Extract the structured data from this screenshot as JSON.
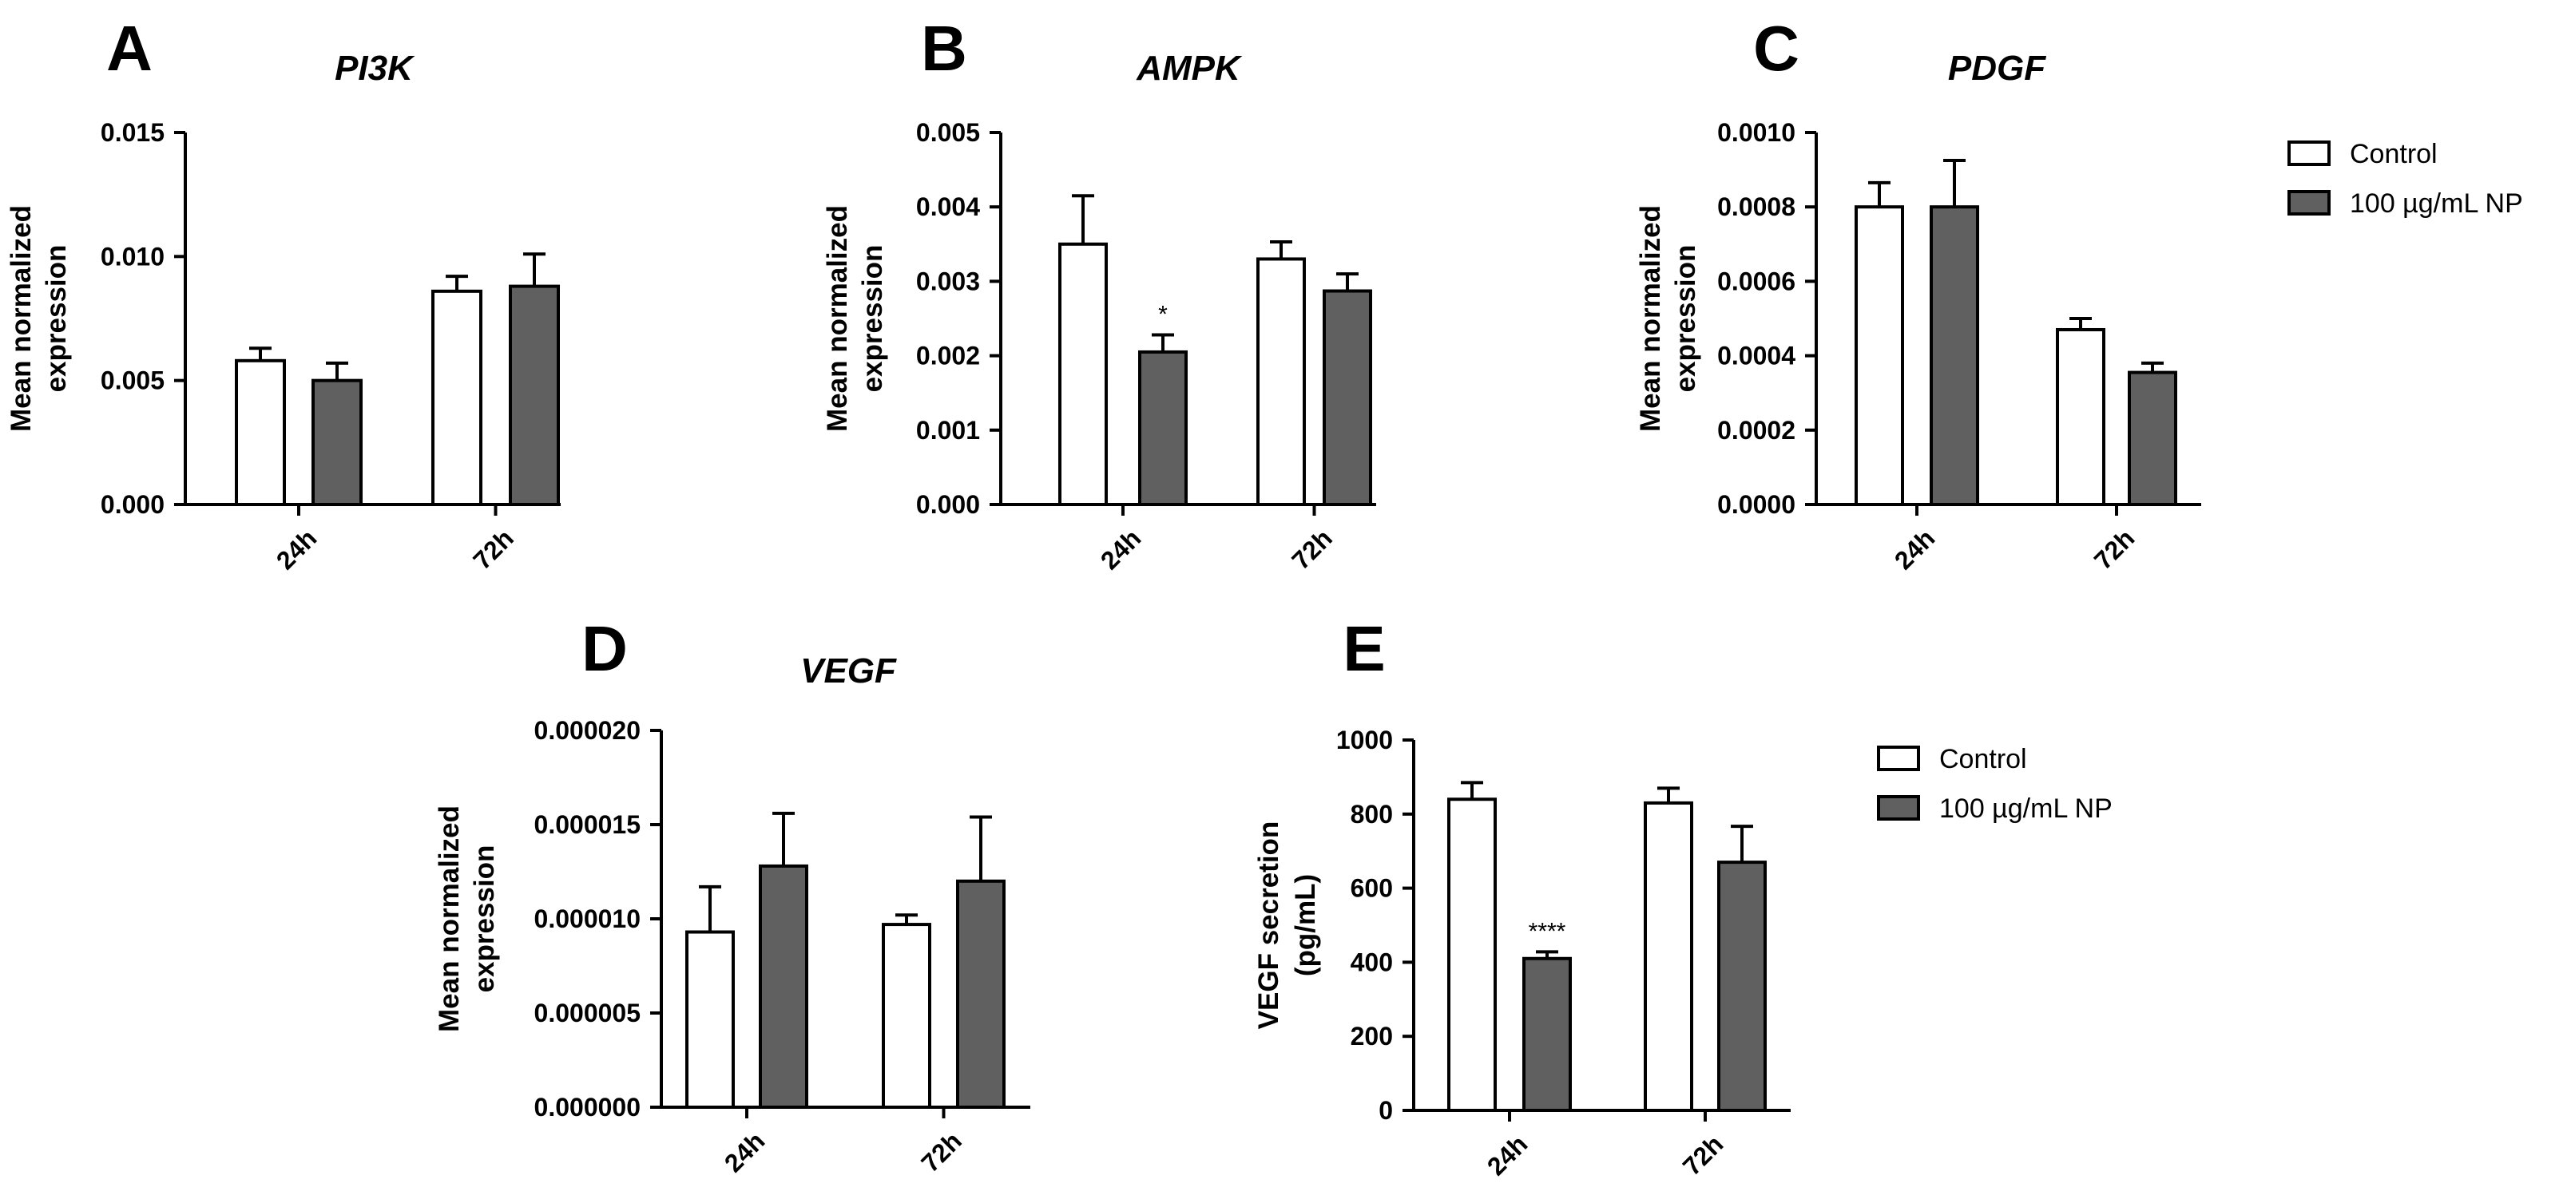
{
  "colors": {
    "control": "#ffffff",
    "treated": "#606060",
    "stroke": "#000000"
  },
  "legends": [
    {
      "items": [
        {
          "label": "Control",
          "series": "control"
        },
        {
          "label": "100 µg/mL NP",
          "series": "treated"
        }
      ]
    },
    {
      "items": [
        {
          "label": "Control",
          "series": "control"
        },
        {
          "label": "100 µg/mL NP",
          "series": "treated"
        }
      ]
    }
  ],
  "chart_data": [
    {
      "panel": "A",
      "type": "bar",
      "title": "PI3K",
      "ylabel_lines": [
        "Mean normalized",
        "expression"
      ],
      "categories": [
        "24h",
        "72h"
      ],
      "ylim": [
        0,
        0.015
      ],
      "yticks": [
        "0.000",
        "0.005",
        "0.010",
        "0.015"
      ],
      "series": [
        {
          "name": "Control",
          "key": "control",
          "values": [
            0.0058,
            0.0086
          ],
          "errors": [
            0.0005,
            0.0006
          ]
        },
        {
          "name": "100 µg/mL NP",
          "key": "treated",
          "values": [
            0.005,
            0.0088
          ],
          "errors": [
            0.0007,
            0.0013
          ]
        }
      ],
      "annotations": []
    },
    {
      "panel": "B",
      "type": "bar",
      "title": "AMPK",
      "ylabel_lines": [
        "Mean normalized",
        "expression"
      ],
      "categories": [
        "24h",
        "72h"
      ],
      "ylim": [
        0,
        0.005
      ],
      "yticks": [
        "0.000",
        "0.001",
        "0.002",
        "0.003",
        "0.004",
        "0.005"
      ],
      "series": [
        {
          "name": "Control",
          "key": "control",
          "values": [
            0.0035,
            0.0033
          ],
          "errors": [
            0.00065,
            0.00023
          ]
        },
        {
          "name": "100 µg/mL NP",
          "key": "treated",
          "values": [
            0.00205,
            0.00287
          ],
          "errors": [
            0.00023,
            0.00023
          ]
        }
      ],
      "annotations": [
        {
          "series": "treated",
          "category": "24h",
          "text": "*"
        }
      ]
    },
    {
      "panel": "C",
      "type": "bar",
      "title": "PDGF",
      "ylabel_lines": [
        "Mean normalized",
        "expression"
      ],
      "categories": [
        "24h",
        "72h"
      ],
      "ylim": [
        0,
        0.001
      ],
      "yticks": [
        "0.0000",
        "0.0002",
        "0.0004",
        "0.0006",
        "0.0008",
        "0.0010"
      ],
      "series": [
        {
          "name": "Control",
          "key": "control",
          "values": [
            0.0008,
            0.00047
          ],
          "errors": [
            6.5e-05,
            3e-05
          ]
        },
        {
          "name": "100 µg/mL NP",
          "key": "treated",
          "values": [
            0.0008,
            0.000355
          ],
          "errors": [
            0.000125,
            2.5e-05
          ]
        }
      ],
      "annotations": []
    },
    {
      "panel": "D",
      "type": "bar",
      "title": "VEGF",
      "ylabel_lines": [
        "Mean normalized",
        "expression"
      ],
      "categories": [
        "24h",
        "72h"
      ],
      "ylim": [
        0,
        2e-05
      ],
      "yticks": [
        "0.000000",
        "0.000005",
        "0.000010",
        "0.000015",
        "0.000020"
      ],
      "series": [
        {
          "name": "Control",
          "key": "control",
          "values": [
            9.3e-06,
            9.7e-06
          ],
          "errors": [
            2.4e-06,
            5e-07
          ]
        },
        {
          "name": "100 µg/mL NP",
          "key": "treated",
          "values": [
            1.28e-05,
            1.2e-05
          ],
          "errors": [
            2.8e-06,
            3.4e-06
          ]
        }
      ],
      "annotations": []
    },
    {
      "panel": "E",
      "type": "bar",
      "title": "",
      "ylabel_lines": [
        "VEGF secretion",
        "(pg/mL)"
      ],
      "categories": [
        "24h",
        "72h"
      ],
      "ylim": [
        0,
        1000
      ],
      "yticks": [
        "0",
        "200",
        "400",
        "600",
        "800",
        "1000"
      ],
      "series": [
        {
          "name": "Control",
          "key": "control",
          "values": [
            840,
            830
          ],
          "errors": [
            45,
            40
          ]
        },
        {
          "name": "100 µg/mL NP",
          "key": "treated",
          "values": [
            410,
            670
          ],
          "errors": [
            18,
            97
          ]
        }
      ],
      "annotations": [
        {
          "series": "treated",
          "category": "24h",
          "text": "****"
        }
      ]
    }
  ]
}
